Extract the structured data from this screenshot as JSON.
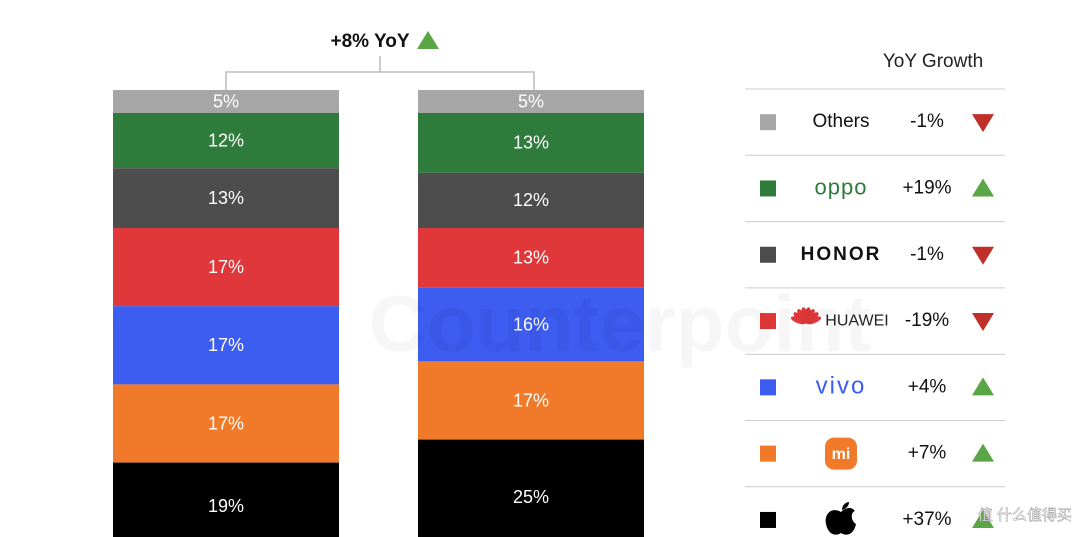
{
  "chart_data": {
    "type": "stacked-bar",
    "annotation": "+8% YoY",
    "legend_title": "YoY Growth",
    "watermark": "Counterpoint",
    "corner_watermark": "值 什么值得买",
    "categories": [
      null,
      null
    ],
    "series": [
      {
        "name": "Others",
        "color": "#a6a6a6",
        "values": [
          5,
          5
        ],
        "value_labels": [
          "5%",
          "5%"
        ],
        "growth": -1,
        "growth_label": "-1%"
      },
      {
        "name": "oppo",
        "color": "#2e7b3c",
        "values": [
          12,
          13
        ],
        "value_labels": [
          "12%",
          "13%"
        ],
        "growth": 19,
        "growth_label": "+19%"
      },
      {
        "name": "HONOR",
        "color": "#4d4d4d",
        "values": [
          13,
          12
        ],
        "value_labels": [
          "13%",
          "12%"
        ],
        "growth": -1,
        "growth_label": "-1%"
      },
      {
        "name": "HUAWEI",
        "color": "#e0383a",
        "values": [
          17,
          13
        ],
        "value_labels": [
          "17%",
          "13%"
        ],
        "growth": -19,
        "growth_label": "-19%"
      },
      {
        "name": "vivo",
        "color": "#3d5cf0",
        "values": [
          17,
          16
        ],
        "value_labels": [
          "17%",
          "16%"
        ],
        "growth": 4,
        "growth_label": "+4%"
      },
      {
        "name": "mi",
        "color": "#f07a2a",
        "values": [
          17,
          17
        ],
        "value_labels": [
          "17%",
          "17%"
        ],
        "growth": 7,
        "growth_label": "+7%"
      },
      {
        "name": null,
        "color": "#000000",
        "values": [
          19,
          25
        ],
        "value_labels": [
          "19%",
          "25%"
        ],
        "growth": 37,
        "growth_label": "+37%"
      }
    ],
    "up_color": "#5aa545",
    "down_color": "#c0302b"
  }
}
